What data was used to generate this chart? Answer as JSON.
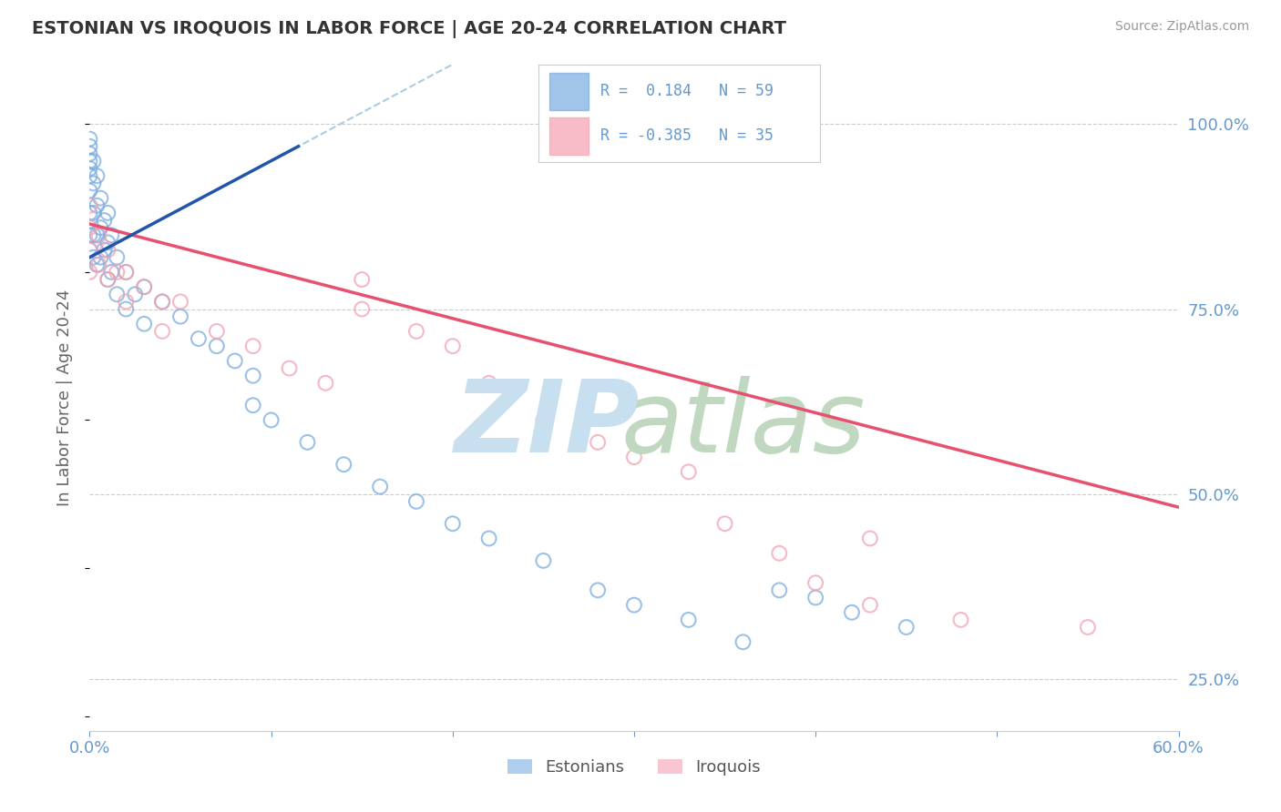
{
  "title": "ESTONIAN VS IROQUOIS IN LABOR FORCE | AGE 20-24 CORRELATION CHART",
  "source": "Source: ZipAtlas.com",
  "ylabel": "In Labor Force | Age 20-24",
  "xlim": [
    0.0,
    0.6
  ],
  "ylim": [
    0.18,
    1.08
  ],
  "yticks_right": [
    1.0,
    0.75,
    0.5,
    0.25
  ],
  "ytick_labels_right": [
    "100.0%",
    "75.0%",
    "50.0%",
    "25.0%"
  ],
  "estonians_color": "#7AACE0",
  "iroquois_color": "#F4A0B0",
  "blue_line_color": "#2255AA",
  "pink_line_color": "#E85070",
  "dashed_line_color": "#AACCE0",
  "bg_color": "#FFFFFF",
  "grid_color": "#CCCCCC",
  "title_color": "#333333",
  "axis_color": "#6699CC",
  "estonians_x": [
    0.0,
    0.0,
    0.0,
    0.0,
    0.0,
    0.0,
    0.0,
    0.0,
    0.0,
    0.0,
    0.002,
    0.002,
    0.002,
    0.002,
    0.002,
    0.004,
    0.004,
    0.004,
    0.004,
    0.006,
    0.006,
    0.006,
    0.008,
    0.008,
    0.01,
    0.01,
    0.01,
    0.012,
    0.012,
    0.015,
    0.015,
    0.02,
    0.02,
    0.025,
    0.03,
    0.03,
    0.04,
    0.05,
    0.06,
    0.07,
    0.08,
    0.09,
    0.09,
    0.1,
    0.12,
    0.14,
    0.16,
    0.18,
    0.2,
    0.22,
    0.25,
    0.28,
    0.3,
    0.33,
    0.36,
    0.38,
    0.4,
    0.42,
    0.45
  ],
  "estonians_y": [
    0.98,
    0.97,
    0.96,
    0.95,
    0.94,
    0.93,
    0.91,
    0.88,
    0.85,
    0.83,
    0.95,
    0.92,
    0.88,
    0.85,
    0.82,
    0.93,
    0.89,
    0.85,
    0.81,
    0.9,
    0.86,
    0.82,
    0.87,
    0.83,
    0.88,
    0.84,
    0.79,
    0.85,
    0.8,
    0.82,
    0.77,
    0.8,
    0.75,
    0.77,
    0.78,
    0.73,
    0.76,
    0.74,
    0.71,
    0.7,
    0.68,
    0.66,
    0.62,
    0.6,
    0.57,
    0.54,
    0.51,
    0.49,
    0.46,
    0.44,
    0.41,
    0.37,
    0.35,
    0.33,
    0.3,
    0.37,
    0.36,
    0.34,
    0.32
  ],
  "iroquois_x": [
    0.0,
    0.0,
    0.0,
    0.0,
    0.005,
    0.005,
    0.01,
    0.01,
    0.015,
    0.02,
    0.02,
    0.03,
    0.04,
    0.04,
    0.05,
    0.07,
    0.09,
    0.11,
    0.13,
    0.15,
    0.15,
    0.18,
    0.2,
    0.22,
    0.25,
    0.28,
    0.3,
    0.33,
    0.35,
    0.38,
    0.4,
    0.43,
    0.43,
    0.48,
    0.55
  ],
  "iroquois_y": [
    0.89,
    0.86,
    0.83,
    0.8,
    0.85,
    0.81,
    0.83,
    0.79,
    0.8,
    0.8,
    0.76,
    0.78,
    0.76,
    0.72,
    0.76,
    0.72,
    0.7,
    0.67,
    0.65,
    0.79,
    0.75,
    0.72,
    0.7,
    0.65,
    0.6,
    0.57,
    0.55,
    0.53,
    0.46,
    0.42,
    0.38,
    0.35,
    0.44,
    0.33,
    0.32
  ]
}
